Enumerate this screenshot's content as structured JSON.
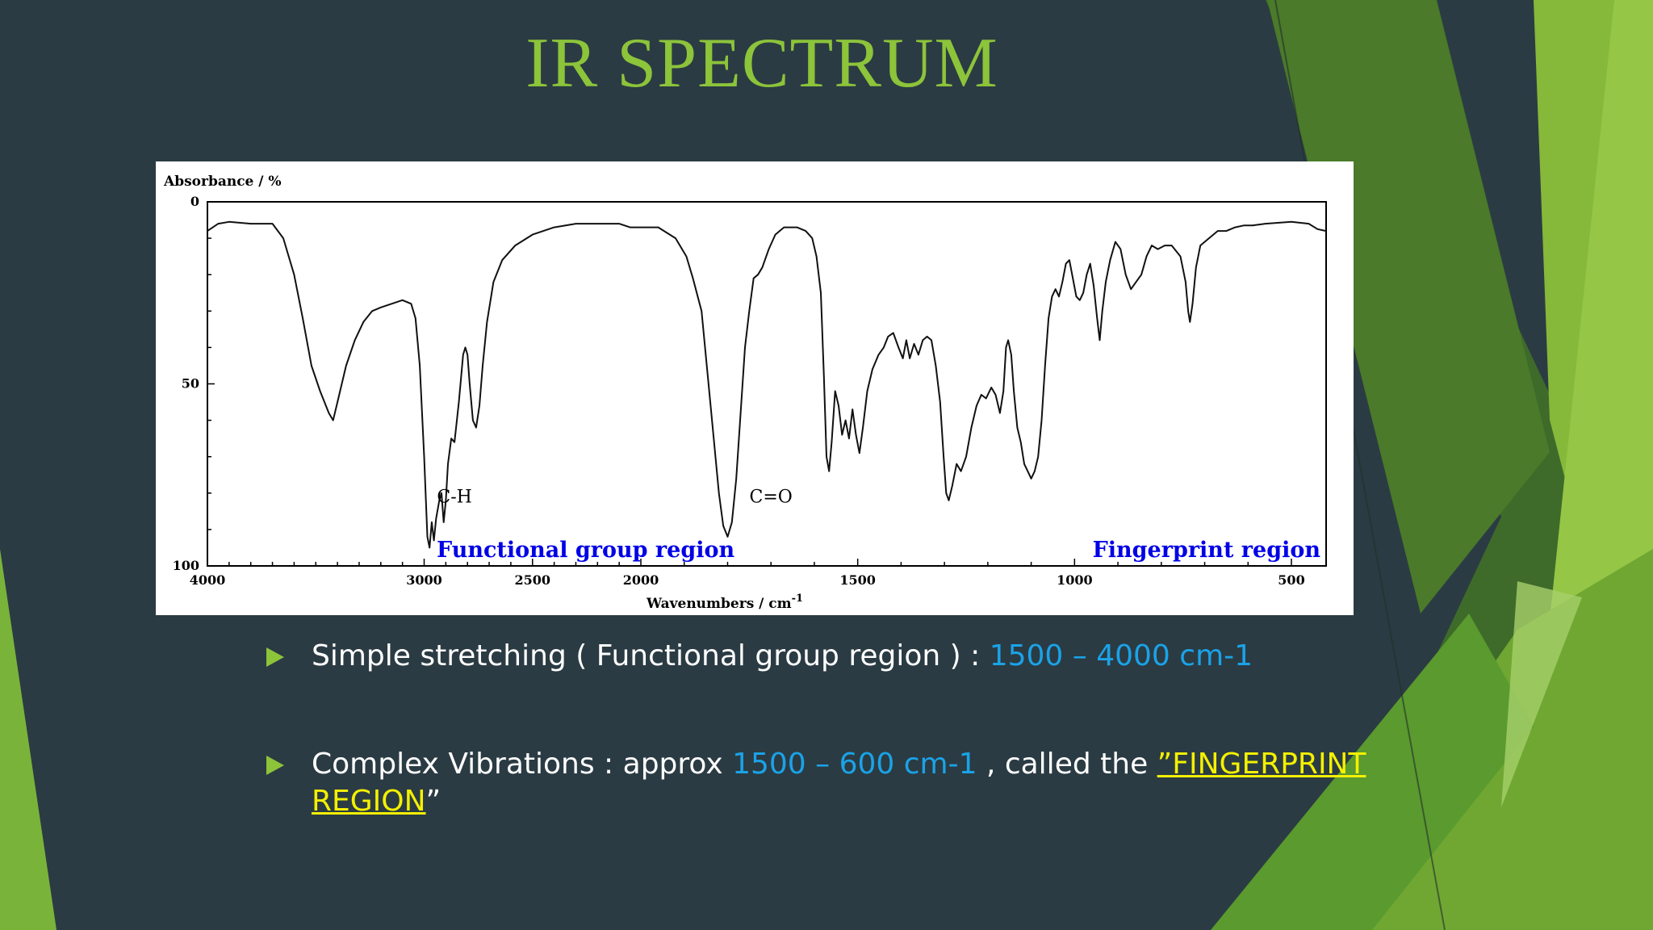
{
  "slide": {
    "title": "IR SPECTRUM",
    "bullets": [
      {
        "text": "Simple stretching ( Functional group region ) : ",
        "highlight": "1500 – 4000 cm-1"
      },
      {
        "text": "Complex Vibrations :  approx ",
        "highlight": "1500 – 600 cm-1",
        "text2": " , called the  ",
        "fingerprint_part1": "”FINGERPRINT",
        "fingerprint_part2": "REGION",
        "closing_quote": "”"
      }
    ],
    "colors": {
      "background": "#2b3b43",
      "title": "#8cc43a",
      "highlight": "#1aa3e8",
      "fingerprint": "#f4f000",
      "bullet_arrow": "#8cc43a",
      "region_label": "#0000e6"
    }
  },
  "chart_data": {
    "type": "line",
    "ylabel": "Absorbance / %",
    "xlabel_main": "Wavenumbers / cm",
    "xlabel_superscript": "-1",
    "x_reversed": true,
    "xlim": [
      4000,
      420
    ],
    "ylim": [
      0,
      100
    ],
    "y_inverted": true,
    "x_scale": "piecewise linear (4000–2000 and 2000–420 compressed differently)",
    "xticks": [
      {
        "value": 4000,
        "label": "4000"
      },
      {
        "value": 3000,
        "label": "3000"
      },
      {
        "value": 2500,
        "label": "2500"
      },
      {
        "value": 2000,
        "label": "2000"
      },
      {
        "value": 1500,
        "label": "1500"
      },
      {
        "value": 1000,
        "label": "1000"
      },
      {
        "value": 500,
        "label": "500"
      }
    ],
    "yticks": [
      {
        "value": 0,
        "label": "0"
      },
      {
        "value": 50,
        "label": "50"
      },
      {
        "value": 100,
        "label": "100"
      }
    ],
    "annotations": [
      {
        "text": "C-H",
        "x": 2860,
        "y": 81
      },
      {
        "text": "C=O",
        "x": 1700,
        "y": 81
      }
    ],
    "region_labels": [
      {
        "text": "Functional group region",
        "x": 2800,
        "y": 96
      },
      {
        "text": "Fingerprint region",
        "x": 1000,
        "y": 96
      }
    ],
    "series": [
      {
        "values": [
          [
            4000,
            8
          ],
          [
            3950,
            6
          ],
          [
            3900,
            5.5
          ],
          [
            3800,
            6
          ],
          [
            3700,
            6
          ],
          [
            3650,
            10
          ],
          [
            3600,
            20
          ],
          [
            3560,
            32
          ],
          [
            3520,
            45
          ],
          [
            3480,
            52
          ],
          [
            3440,
            58
          ],
          [
            3420,
            60
          ],
          [
            3400,
            55
          ],
          [
            3360,
            45
          ],
          [
            3320,
            38
          ],
          [
            3280,
            33
          ],
          [
            3240,
            30
          ],
          [
            3200,
            29
          ],
          [
            3150,
            28
          ],
          [
            3100,
            27
          ],
          [
            3060,
            28
          ],
          [
            3040,
            32
          ],
          [
            3020,
            45
          ],
          [
            3000,
            70
          ],
          [
            2985,
            92
          ],
          [
            2975,
            95
          ],
          [
            2965,
            88
          ],
          [
            2955,
            93
          ],
          [
            2945,
            87
          ],
          [
            2930,
            82
          ],
          [
            2920,
            80
          ],
          [
            2910,
            88
          ],
          [
            2900,
            82
          ],
          [
            2890,
            72
          ],
          [
            2875,
            65
          ],
          [
            2860,
            66
          ],
          [
            2840,
            55
          ],
          [
            2820,
            42
          ],
          [
            2810,
            40
          ],
          [
            2800,
            42
          ],
          [
            2790,
            50
          ],
          [
            2775,
            60
          ],
          [
            2760,
            62
          ],
          [
            2745,
            56
          ],
          [
            2730,
            45
          ],
          [
            2710,
            33
          ],
          [
            2680,
            22
          ],
          [
            2640,
            16
          ],
          [
            2580,
            12
          ],
          [
            2500,
            9
          ],
          [
            2400,
            7
          ],
          [
            2300,
            6
          ],
          [
            2200,
            6
          ],
          [
            2100,
            6
          ],
          [
            2050,
            7
          ],
          [
            2000,
            7
          ],
          [
            1960,
            7
          ],
          [
            1920,
            10
          ],
          [
            1895,
            15
          ],
          [
            1880,
            21
          ],
          [
            1860,
            30
          ],
          [
            1840,
            55
          ],
          [
            1820,
            80
          ],
          [
            1810,
            89
          ],
          [
            1800,
            92
          ],
          [
            1790,
            88
          ],
          [
            1780,
            76
          ],
          [
            1770,
            58
          ],
          [
            1760,
            40
          ],
          [
            1750,
            30
          ],
          [
            1740,
            21
          ],
          [
            1730,
            20
          ],
          [
            1720,
            18
          ],
          [
            1705,
            13
          ],
          [
            1690,
            9
          ],
          [
            1670,
            7
          ],
          [
            1640,
            7
          ],
          [
            1620,
            8
          ],
          [
            1605,
            10
          ],
          [
            1595,
            15
          ],
          [
            1585,
            25
          ],
          [
            1578,
            48
          ],
          [
            1572,
            70
          ],
          [
            1566,
            74
          ],
          [
            1560,
            66
          ],
          [
            1552,
            52
          ],
          [
            1544,
            56
          ],
          [
            1536,
            64
          ],
          [
            1528,
            60
          ],
          [
            1520,
            65
          ],
          [
            1512,
            57
          ],
          [
            1504,
            64
          ],
          [
            1496,
            69
          ],
          [
            1488,
            62
          ],
          [
            1478,
            52
          ],
          [
            1466,
            46
          ],
          [
            1452,
            42
          ],
          [
            1440,
            40
          ],
          [
            1430,
            37
          ],
          [
            1418,
            36
          ],
          [
            1406,
            40
          ],
          [
            1396,
            43
          ],
          [
            1388,
            38
          ],
          [
            1380,
            43
          ],
          [
            1370,
            39
          ],
          [
            1360,
            42
          ],
          [
            1350,
            38
          ],
          [
            1340,
            37
          ],
          [
            1330,
            38
          ],
          [
            1320,
            45
          ],
          [
            1310,
            55
          ],
          [
            1302,
            70
          ],
          [
            1296,
            80
          ],
          [
            1290,
            82
          ],
          [
            1282,
            78
          ],
          [
            1272,
            72
          ],
          [
            1262,
            74
          ],
          [
            1250,
            70
          ],
          [
            1238,
            62
          ],
          [
            1226,
            56
          ],
          [
            1215,
            53
          ],
          [
            1204,
            54
          ],
          [
            1192,
            51
          ],
          [
            1182,
            53
          ],
          [
            1172,
            58
          ],
          [
            1164,
            52
          ],
          [
            1158,
            40
          ],
          [
            1153,
            38
          ],
          [
            1146,
            42
          ],
          [
            1140,
            52
          ],
          [
            1132,
            62
          ],
          [
            1124,
            66
          ],
          [
            1116,
            72
          ],
          [
            1108,
            74
          ],
          [
            1100,
            76
          ],
          [
            1092,
            74
          ],
          [
            1084,
            70
          ],
          [
            1076,
            60
          ],
          [
            1068,
            45
          ],
          [
            1060,
            32
          ],
          [
            1052,
            26
          ],
          [
            1044,
            24
          ],
          [
            1036,
            26
          ],
          [
            1028,
            22
          ],
          [
            1020,
            17
          ],
          [
            1012,
            16
          ],
          [
            1004,
            21
          ],
          [
            996,
            26
          ],
          [
            988,
            27
          ],
          [
            980,
            25
          ],
          [
            972,
            20
          ],
          [
            964,
            17
          ],
          [
            956,
            23
          ],
          [
            948,
            32
          ],
          [
            942,
            38
          ],
          [
            936,
            30
          ],
          [
            928,
            22
          ],
          [
            918,
            16
          ],
          [
            906,
            11
          ],
          [
            894,
            13
          ],
          [
            882,
            20
          ],
          [
            870,
            24
          ],
          [
            858,
            22
          ],
          [
            846,
            20
          ],
          [
            834,
            15
          ],
          [
            822,
            12
          ],
          [
            808,
            13
          ],
          [
            792,
            12
          ],
          [
            776,
            12
          ],
          [
            756,
            15
          ],
          [
            744,
            22
          ],
          [
            738,
            30
          ],
          [
            734,
            33
          ],
          [
            728,
            28
          ],
          [
            720,
            18
          ],
          [
            710,
            12
          ],
          [
            690,
            10
          ],
          [
            670,
            8
          ],
          [
            650,
            8
          ],
          [
            630,
            7
          ],
          [
            610,
            6.5
          ],
          [
            590,
            6.5
          ],
          [
            560,
            6
          ],
          [
            500,
            5.5
          ],
          [
            460,
            6
          ],
          [
            440,
            7.5
          ],
          [
            420,
            8
          ]
        ]
      }
    ]
  }
}
